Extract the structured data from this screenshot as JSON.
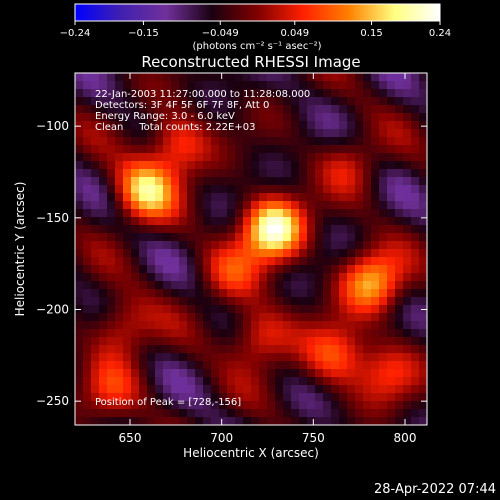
{
  "chart_data": {
    "type": "heatmap",
    "title": "Reconstructed RHESSI Image",
    "xlabel": "Heliocentric X (arcsec)",
    "ylabel": "Heliocentric Y (arcsec)",
    "xlim": [
      620,
      812
    ],
    "ylim": [
      -263,
      -71
    ],
    "x_ticks": [
      650,
      700,
      750,
      800
    ],
    "x_tick_labels": [
      "650",
      "700",
      "750",
      "800"
    ],
    "y_ticks": [
      -100,
      -150,
      -200,
      -250
    ],
    "y_tick_labels": [
      "−100",
      "−150",
      "−200",
      "−250"
    ],
    "colorbar": {
      "range": [
        -0.24,
        0.24
      ],
      "ticks": [
        -0.24,
        -0.15,
        -0.049,
        0.049,
        0.15,
        0.24
      ],
      "tick_labels": [
        "−0.24",
        "−0.15",
        "−0.049",
        "0.049",
        "0.15",
        "0.24"
      ],
      "label": "(photons cm⁻² s⁻¹ asec⁻²)",
      "stops": [
        "#0000ff",
        "#4020b0",
        "#70309a",
        "#1a0010",
        "#800000",
        "#ff2000",
        "#ff8000",
        "#ffff80",
        "#ffffff"
      ]
    },
    "peaks": [
      {
        "x": 728,
        "y": -156,
        "value": 0.24
      },
      {
        "x": 658,
        "y": -135,
        "value": 0.18
      },
      {
        "x": 782,
        "y": -185,
        "value": 0.17
      },
      {
        "x": 676,
        "y": -110,
        "value": 0.12
      },
      {
        "x": 762,
        "y": -225,
        "value": 0.12
      },
      {
        "x": 645,
        "y": -210,
        "value": 0.1
      },
      {
        "x": 720,
        "y": -215,
        "value": 0.11
      },
      {
        "x": 790,
        "y": -235,
        "value": 0.09
      },
      {
        "x": 705,
        "y": -180,
        "value": 0.08
      },
      {
        "x": 770,
        "y": -120,
        "value": 0.07
      },
      {
        "x": 640,
        "y": -245,
        "value": 0.08
      }
    ],
    "info": {
      "line1": "22-Jan-2003 11:27:00.000 to 11:28:08.000",
      "line2": "Detectors: 3F 4F 5F 6F 7F 8F, Att 0",
      "line3": "Energy Range: 3.0 - 6.0 keV",
      "line4": "Clean     Total counts: 2.22E+03",
      "peak_position": "Position of Peak = [728,-156]"
    },
    "timestamp": "28-Apr-2022 07:44"
  }
}
